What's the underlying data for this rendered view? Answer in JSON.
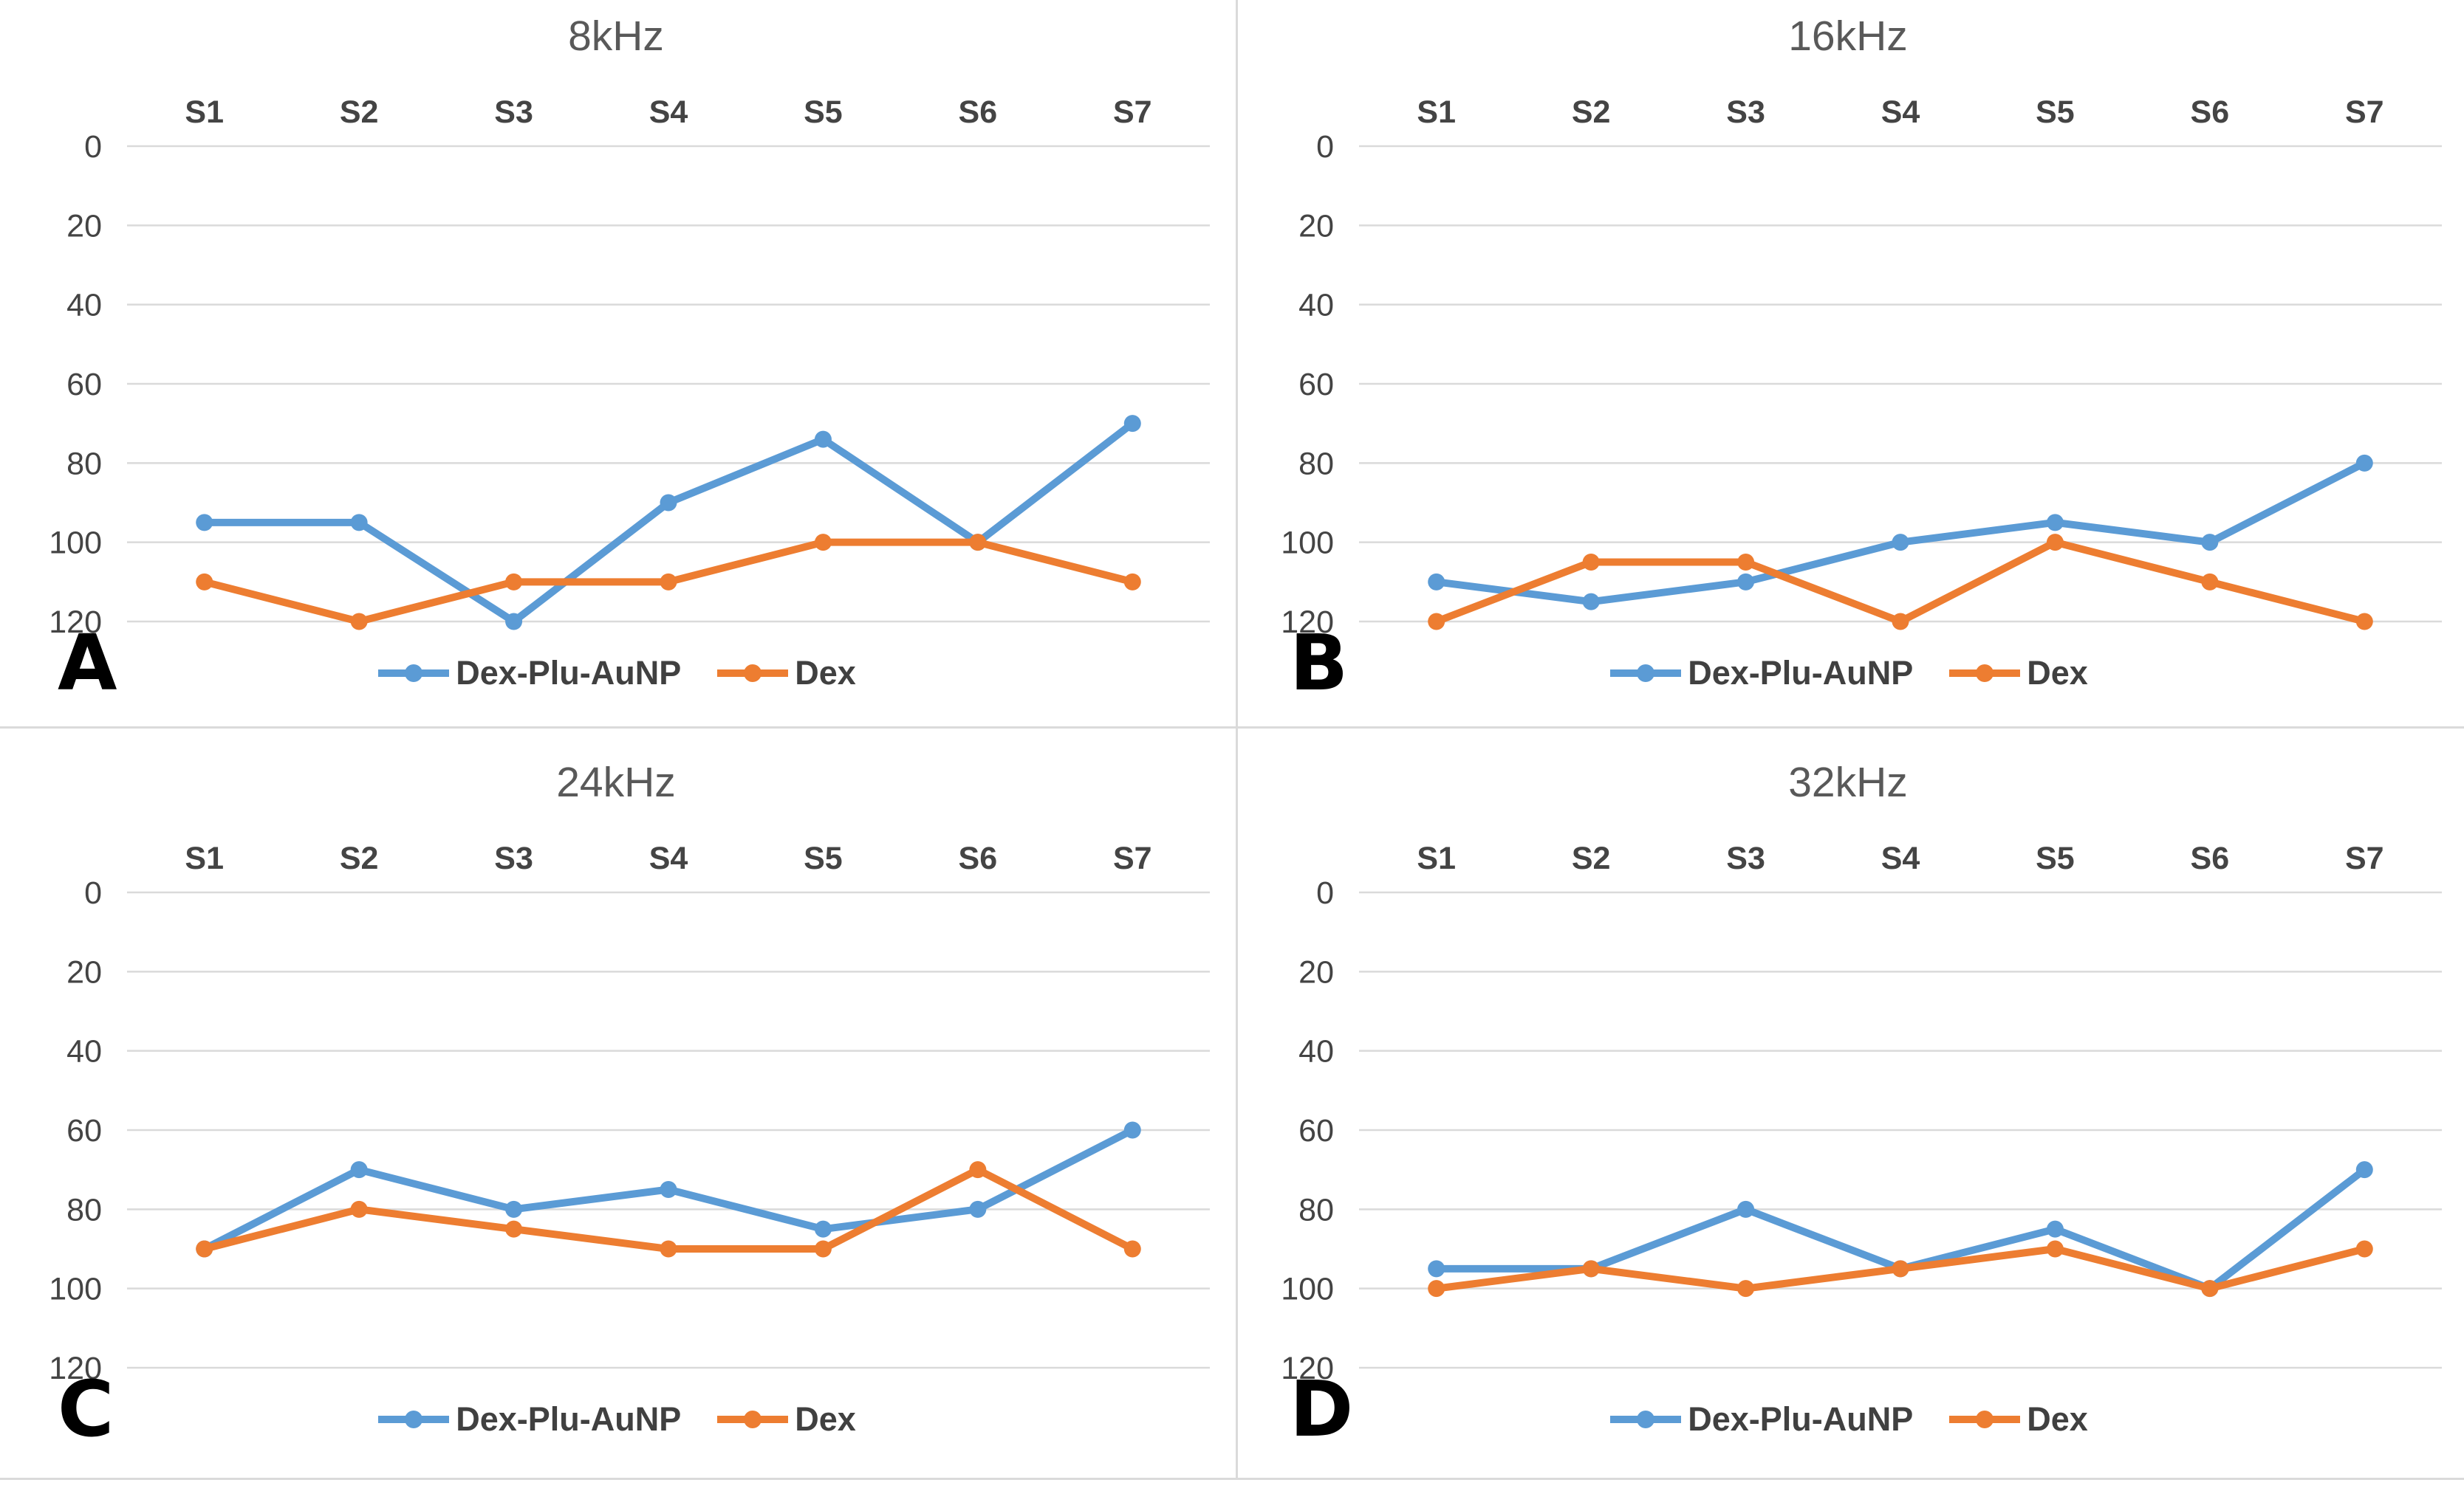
{
  "figure": {
    "background": "#FFFFFF",
    "divider_color": "#DADADA",
    "description_visible_text_only": true
  },
  "colors": {
    "series_dex_plu_aunp": "#5B9BD5",
    "series_dex": "#ED7D31",
    "gridline": "#DADADA",
    "tick_label": "#444444",
    "title": "#595959",
    "legend_label": "#404040",
    "panel_letter": "#000000"
  },
  "y_axis": {
    "min": 0,
    "max": 120,
    "ticks": [
      0,
      20,
      40,
      60,
      80,
      100,
      120
    ],
    "inverted": true
  },
  "categories": [
    "S1",
    "S2",
    "S3",
    "S4",
    "S5",
    "S6",
    "S7"
  ],
  "chart_data": [
    {
      "type": "line",
      "panel_label": "A",
      "title": "8kHz",
      "categories": [
        "S1",
        "S2",
        "S3",
        "S4",
        "S5",
        "S6",
        "S7"
      ],
      "x_axis_position": "top",
      "y_inverted": true,
      "ylim": [
        0,
        120
      ],
      "yticks": [
        0,
        20,
        40,
        60,
        80,
        100,
        120
      ],
      "grid": true,
      "legend_position": "bottom",
      "series": [
        {
          "name": "Dex-Plu-AuNP",
          "color": "#5B9BD5",
          "values": [
            95,
            95,
            120,
            90,
            74,
            100,
            70
          ]
        },
        {
          "name": "Dex",
          "color": "#ED7D31",
          "values": [
            110,
            120,
            110,
            110,
            100,
            100,
            110
          ]
        }
      ]
    },
    {
      "type": "line",
      "panel_label": "B",
      "title": "16kHz",
      "categories": [
        "S1",
        "S2",
        "S3",
        "S4",
        "S5",
        "S6",
        "S7"
      ],
      "x_axis_position": "top",
      "y_inverted": true,
      "ylim": [
        0,
        120
      ],
      "yticks": [
        0,
        20,
        40,
        60,
        80,
        100,
        120
      ],
      "grid": true,
      "legend_position": "bottom",
      "series": [
        {
          "name": "Dex-Plu-AuNP",
          "color": "#5B9BD5",
          "values": [
            110,
            115,
            110,
            100,
            95,
            100,
            80
          ]
        },
        {
          "name": "Dex",
          "color": "#ED7D31",
          "values": [
            120,
            105,
            105,
            120,
            100,
            110,
            120
          ]
        }
      ]
    },
    {
      "type": "line",
      "panel_label": "C",
      "title": "24kHz",
      "categories": [
        "S1",
        "S2",
        "S3",
        "S4",
        "S5",
        "S6",
        "S7"
      ],
      "x_axis_position": "top",
      "y_inverted": true,
      "ylim": [
        0,
        120
      ],
      "yticks": [
        0,
        20,
        40,
        60,
        80,
        100,
        120
      ],
      "grid": true,
      "legend_position": "bottom",
      "series": [
        {
          "name": "Dex-Plu-AuNP",
          "color": "#5B9BD5",
          "values": [
            90,
            70,
            80,
            75,
            85,
            80,
            60
          ]
        },
        {
          "name": "Dex",
          "color": "#ED7D31",
          "values": [
            90,
            80,
            85,
            90,
            90,
            70,
            90
          ]
        }
      ]
    },
    {
      "type": "line",
      "panel_label": "D",
      "title": "32kHz",
      "categories": [
        "S1",
        "S2",
        "S3",
        "S4",
        "S5",
        "S6",
        "S7"
      ],
      "x_axis_position": "top",
      "y_inverted": true,
      "ylim": [
        0,
        120
      ],
      "yticks": [
        0,
        20,
        40,
        60,
        80,
        100,
        120
      ],
      "grid": true,
      "legend_position": "bottom",
      "series": [
        {
          "name": "Dex-Plu-AuNP",
          "color": "#5B9BD5",
          "values": [
            95,
            95,
            80,
            95,
            85,
            100,
            70
          ]
        },
        {
          "name": "Dex",
          "color": "#ED7D31",
          "values": [
            100,
            95,
            100,
            95,
            90,
            100,
            90
          ]
        }
      ]
    }
  ]
}
